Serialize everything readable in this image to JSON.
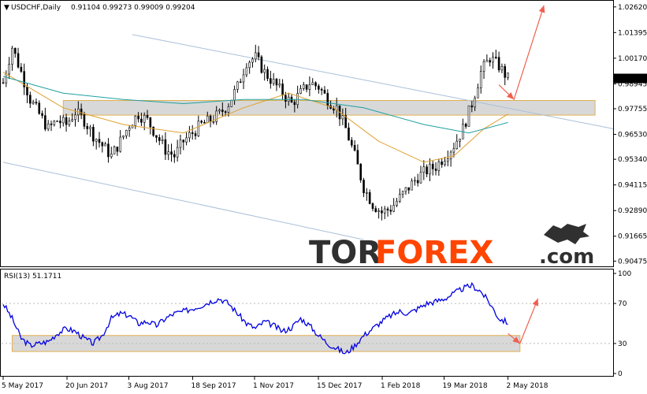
{
  "header": {
    "symbol": "USDCHF,Daily",
    "ohlc": "0.91104 0.99273 0.99009 0.99204"
  },
  "rsi_header": "RSI(13) 51.1711",
  "watermark": {
    "part1": "TOR",
    "part2": "FOREX",
    "part3": ".com"
  },
  "colors": {
    "candle": "#000000",
    "ma_fast": "#e0a030",
    "ma_slow": "#20a0a0",
    "channel": "#a8c0d8",
    "zone_fill": "#d8d8d8",
    "zone_border": "#e0b050",
    "forecast_arrow": "#f06050",
    "rsi_line": "#0000e0",
    "rsi_low": "#8888dd",
    "logo_tor": "#303030",
    "logo_forex": "#ff4500"
  },
  "chart_data": [
    {
      "type": "candlestick",
      "title": "USDCHF,Daily",
      "price_axis_labels": [
        "1.02620",
        "1.01395",
        "1.00170",
        "0.98945",
        "0.97755",
        "0.96530",
        "0.95340",
        "0.94115",
        "0.92890",
        "0.91665",
        "0.90475"
      ],
      "current_price_label": "0.99204",
      "x_tick_labels": [
        "5 May 2017",
        "20 Jun 2017",
        "3 Aug 2017",
        "18 Sep 2017",
        "1 Nov 2017",
        "15 Dec 2017",
        "1 Feb 2018",
        "19 Mar 2018",
        "2 May 2018"
      ],
      "ylim": [
        0.903,
        1.028
      ],
      "close_path": [
        [
          0,
          0.99
        ],
        [
          3,
          1.007
        ],
        [
          6,
          0.995
        ],
        [
          9,
          0.982
        ],
        [
          12,
          0.975
        ],
        [
          15,
          0.968
        ],
        [
          18,
          0.972
        ],
        [
          21,
          0.97
        ],
        [
          24,
          0.976
        ],
        [
          27,
          0.972
        ],
        [
          30,
          0.965
        ],
        [
          33,
          0.96
        ],
        [
          36,
          0.955
        ],
        [
          39,
          0.962
        ],
        [
          42,
          0.97
        ],
        [
          45,
          0.975
        ],
        [
          48,
          0.972
        ],
        [
          51,
          0.965
        ],
        [
          54,
          0.958
        ],
        [
          57,
          0.955
        ],
        [
          60,
          0.962
        ],
        [
          63,
          0.966
        ],
        [
          66,
          0.97
        ],
        [
          69,
          0.972
        ],
        [
          72,
          0.975
        ],
        [
          75,
          0.98
        ],
        [
          78,
          0.988
        ],
        [
          81,
          1.0
        ],
        [
          84,
          1.002
        ],
        [
          87,
          0.995
        ],
        [
          90,
          0.99
        ],
        [
          93,
          0.985
        ],
        [
          96,
          0.98
        ],
        [
          99,
          0.985
        ],
        [
          102,
          0.99
        ],
        [
          105,
          0.988
        ],
        [
          108,
          0.982
        ],
        [
          111,
          0.978
        ],
        [
          114,
          0.968
        ],
        [
          117,
          0.955
        ],
        [
          120,
          0.94
        ],
        [
          123,
          0.932
        ],
        [
          126,
          0.928
        ],
        [
          129,
          0.93
        ],
        [
          132,
          0.935
        ],
        [
          135,
          0.94
        ],
        [
          138,
          0.945
        ],
        [
          141,
          0.948
        ],
        [
          144,
          0.95
        ],
        [
          147,
          0.955
        ],
        [
          150,
          0.96
        ],
        [
          153,
          0.968
        ],
        [
          156,
          0.98
        ],
        [
          159,
          0.995
        ],
        [
          162,
          1.002
        ],
        [
          165,
          0.998
        ],
        [
          168,
          0.992
        ]
      ],
      "moving_averages": [
        {
          "name": "fast",
          "points": [
            [
              0,
              0.995
            ],
            [
              20,
              0.978
            ],
            [
              40,
              0.97
            ],
            [
              60,
              0.966
            ],
            [
              80,
              0.978
            ],
            [
              95,
              0.985
            ],
            [
              110,
              0.978
            ],
            [
              125,
              0.962
            ],
            [
              140,
              0.952
            ],
            [
              150,
              0.955
            ],
            [
              160,
              0.968
            ],
            [
              168,
              0.975
            ]
          ]
        },
        {
          "name": "slow",
          "points": [
            [
              0,
              0.993
            ],
            [
              20,
              0.985
            ],
            [
              40,
              0.982
            ],
            [
              60,
              0.98
            ],
            [
              80,
              0.982
            ],
            [
              100,
              0.982
            ],
            [
              120,
              0.978
            ],
            [
              140,
              0.97
            ],
            [
              155,
              0.966
            ],
            [
              168,
              0.971
            ]
          ]
        }
      ],
      "channel_lines": [
        {
          "from": [
            43,
            1.013
          ],
          "to": [
            203,
            0.968
          ]
        },
        {
          "from": [
            0,
            0.952
          ],
          "to": [
            120,
            0.915
          ]
        }
      ],
      "support_zone": {
        "top": 0.9815,
        "bottom": 0.9745
      },
      "forecast": [
        [
          165,
          0.989
        ],
        [
          170,
          0.982
        ],
        [
          180,
          1.027
        ]
      ]
    },
    {
      "type": "line",
      "title": "RSI(13) 51.1711",
      "y_tick_labels": [
        "100",
        "70",
        "30",
        "0"
      ],
      "ylim": [
        0,
        100
      ],
      "levels": [
        70,
        30
      ],
      "values_path": [
        [
          0,
          70
        ],
        [
          3,
          55
        ],
        [
          6,
          35
        ],
        [
          9,
          28
        ],
        [
          12,
          30
        ],
        [
          15,
          32
        ],
        [
          18,
          40
        ],
        [
          21,
          45
        ],
        [
          24,
          42
        ],
        [
          27,
          35
        ],
        [
          30,
          30
        ],
        [
          33,
          38
        ],
        [
          36,
          55
        ],
        [
          39,
          60
        ],
        [
          42,
          58
        ],
        [
          45,
          50
        ],
        [
          48,
          52
        ],
        [
          51,
          48
        ],
        [
          54,
          55
        ],
        [
          57,
          60
        ],
        [
          60,
          62
        ],
        [
          63,
          65
        ],
        [
          66,
          68
        ],
        [
          69,
          72
        ],
        [
          72,
          75
        ],
        [
          75,
          70
        ],
        [
          78,
          60
        ],
        [
          81,
          50
        ],
        [
          84,
          45
        ],
        [
          87,
          52
        ],
        [
          90,
          48
        ],
        [
          93,
          42
        ],
        [
          96,
          46
        ],
        [
          99,
          55
        ],
        [
          102,
          48
        ],
        [
          105,
          38
        ],
        [
          108,
          30
        ],
        [
          111,
          25
        ],
        [
          114,
          20
        ],
        [
          117,
          28
        ],
        [
          120,
          38
        ],
        [
          123,
          45
        ],
        [
          126,
          52
        ],
        [
          129,
          58
        ],
        [
          132,
          62
        ],
        [
          135,
          60
        ],
        [
          138,
          65
        ],
        [
          141,
          70
        ],
        [
          144,
          72
        ],
        [
          147,
          75
        ],
        [
          150,
          80
        ],
        [
          153,
          85
        ],
        [
          156,
          88
        ],
        [
          159,
          82
        ],
        [
          162,
          70
        ],
        [
          165,
          55
        ],
        [
          168,
          51
        ]
      ],
      "support_zone": {
        "top": 38,
        "bottom": 22
      },
      "forecast": [
        [
          168,
          40
        ],
        [
          172,
          30
        ],
        [
          178,
          75
        ]
      ]
    }
  ]
}
